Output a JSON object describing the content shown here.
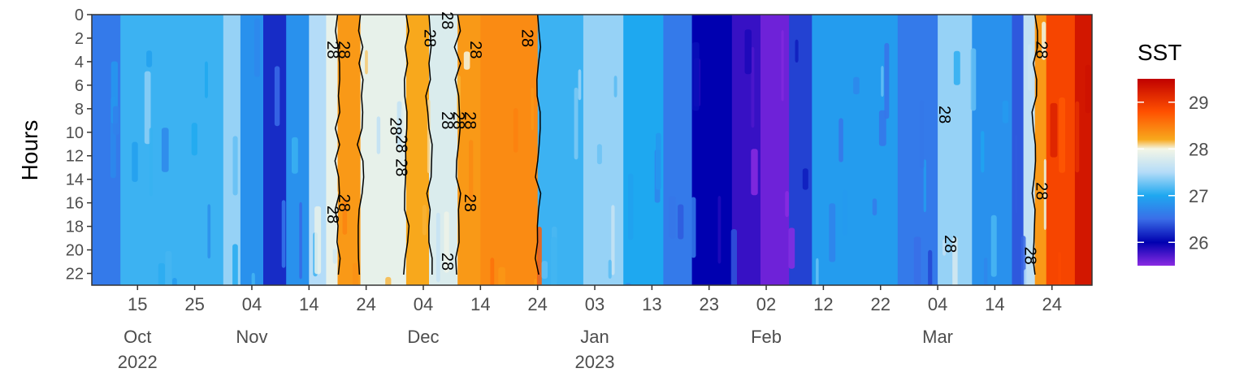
{
  "chart_data": {
    "type": "heatmap",
    "title": "",
    "xlabel": "",
    "ylabel": "Hours",
    "y_ticks": [
      "0",
      "2",
      "4",
      "6",
      "8",
      "10",
      "12",
      "14",
      "16",
      "18",
      "20",
      "22"
    ],
    "ylim": [
      0,
      23
    ],
    "y_direction": "reversed",
    "x_range": [
      "2022-10-07",
      "2023-03-31"
    ],
    "x_ticks": [
      {
        "date": "2022-10-15",
        "day": "15",
        "month": "Oct",
        "year": "2022"
      },
      {
        "date": "2022-10-25",
        "day": "25",
        "month": "",
        "year": ""
      },
      {
        "date": "2022-11-04",
        "day": "04",
        "month": "Nov",
        "year": ""
      },
      {
        "date": "2022-11-14",
        "day": "14",
        "month": "",
        "year": ""
      },
      {
        "date": "2022-11-24",
        "day": "24",
        "month": "",
        "year": ""
      },
      {
        "date": "2022-12-04",
        "day": "04",
        "month": "Dec",
        "year": ""
      },
      {
        "date": "2022-12-14",
        "day": "14",
        "month": "",
        "year": ""
      },
      {
        "date": "2022-12-24",
        "day": "24",
        "month": "",
        "year": ""
      },
      {
        "date": "2023-01-03",
        "day": "03",
        "month": "Jan",
        "year": "2023"
      },
      {
        "date": "2023-01-13",
        "day": "13",
        "month": "",
        "year": ""
      },
      {
        "date": "2023-01-23",
        "day": "23",
        "month": "",
        "year": ""
      },
      {
        "date": "2023-02-02",
        "day": "02",
        "month": "Feb",
        "year": ""
      },
      {
        "date": "2023-02-12",
        "day": "12",
        "month": "",
        "year": ""
      },
      {
        "date": "2023-02-22",
        "day": "22",
        "month": "",
        "year": ""
      },
      {
        "date": "2023-03-04",
        "day": "04",
        "month": "Mar",
        "year": ""
      },
      {
        "date": "2023-03-14",
        "day": "14",
        "month": "",
        "year": ""
      },
      {
        "date": "2023-03-24",
        "day": "24",
        "month": "",
        "year": ""
      }
    ],
    "legend": {
      "title": "SST",
      "placement": "right",
      "range": [
        25.5,
        29.5
      ],
      "ticks": [
        "26",
        "27",
        "28",
        "29"
      ],
      "stops": [
        {
          "value": 25.5,
          "color": "#8a2be2"
        },
        {
          "value": 26.0,
          "color": "#0000b0"
        },
        {
          "value": 26.5,
          "color": "#3a6ee8"
        },
        {
          "value": 27.0,
          "color": "#1ea8f0"
        },
        {
          "value": 27.5,
          "color": "#b4dcf8"
        },
        {
          "value": 28.0,
          "color": "#f4f6e6"
        },
        {
          "value": 28.2,
          "color": "#f8a81c"
        },
        {
          "value": 28.8,
          "color": "#ff5000"
        },
        {
          "value": 29.5,
          "color": "#c00000"
        }
      ]
    },
    "contour_level": 28,
    "contour_labels": [
      "28",
      "28",
      "28",
      "28",
      "28",
      "28",
      "28",
      "28",
      "28",
      "28",
      "28",
      "28",
      "28",
      "28",
      "28",
      "28",
      "28",
      "28",
      "28",
      "28",
      "28"
    ],
    "series": [
      {
        "start": "2022-10-07",
        "end": "2022-10-12",
        "sst": 26.6
      },
      {
        "start": "2022-10-12",
        "end": "2022-10-30",
        "sst": 27.1
      },
      {
        "start": "2022-10-30",
        "end": "2022-11-02",
        "sst": 27.4
      },
      {
        "start": "2022-11-02",
        "end": "2022-11-06",
        "sst": 26.8
      },
      {
        "start": "2022-11-06",
        "end": "2022-11-10",
        "sst": 26.2
      },
      {
        "start": "2022-11-10",
        "end": "2022-11-14",
        "sst": 26.8
      },
      {
        "start": "2022-11-14",
        "end": "2022-11-17",
        "sst": 27.5
      },
      {
        "start": "2022-11-17",
        "end": "2022-11-19",
        "sst": 27.9
      },
      {
        "start": "2022-11-19",
        "end": "2022-11-23",
        "sst": 28.3
      },
      {
        "start": "2022-11-23",
        "end": "2022-12-01",
        "sst": 27.9
      },
      {
        "start": "2022-12-01",
        "end": "2022-12-05",
        "sst": 28.2
      },
      {
        "start": "2022-12-05",
        "end": "2022-12-10",
        "sst": 27.8
      },
      {
        "start": "2022-12-10",
        "end": "2022-12-14",
        "sst": 28.3
      },
      {
        "start": "2022-12-14",
        "end": "2022-12-24",
        "sst": 28.4
      },
      {
        "start": "2022-12-24",
        "end": "2023-01-01",
        "sst": 27.1
      },
      {
        "start": "2023-01-01",
        "end": "2023-01-08",
        "sst": 27.4
      },
      {
        "start": "2023-01-08",
        "end": "2023-01-15",
        "sst": 27.0
      },
      {
        "start": "2023-01-15",
        "end": "2023-01-20",
        "sst": 26.6
      },
      {
        "start": "2023-01-20",
        "end": "2023-01-27",
        "sst": 26.0
      },
      {
        "start": "2023-01-27",
        "end": "2023-02-01",
        "sst": 25.8
      },
      {
        "start": "2023-02-01",
        "end": "2023-02-06",
        "sst": 25.6
      },
      {
        "start": "2023-02-06",
        "end": "2023-02-10",
        "sst": 26.3
      },
      {
        "start": "2023-02-10",
        "end": "2023-02-25",
        "sst": 26.9
      },
      {
        "start": "2023-02-25",
        "end": "2023-03-04",
        "sst": 26.6
      },
      {
        "start": "2023-03-04",
        "end": "2023-03-10",
        "sst": 27.4
      },
      {
        "start": "2023-03-10",
        "end": "2023-03-17",
        "sst": 26.8
      },
      {
        "start": "2023-03-17",
        "end": "2023-03-19",
        "sst": 26.4
      },
      {
        "start": "2023-03-19",
        "end": "2023-03-21",
        "sst": 27.6
      },
      {
        "start": "2023-03-21",
        "end": "2023-03-23",
        "sst": 28.3
      },
      {
        "start": "2023-03-23",
        "end": "2023-03-28",
        "sst": 28.9
      },
      {
        "start": "2023-03-28",
        "end": "2023-03-31",
        "sst": 29.3
      }
    ]
  }
}
